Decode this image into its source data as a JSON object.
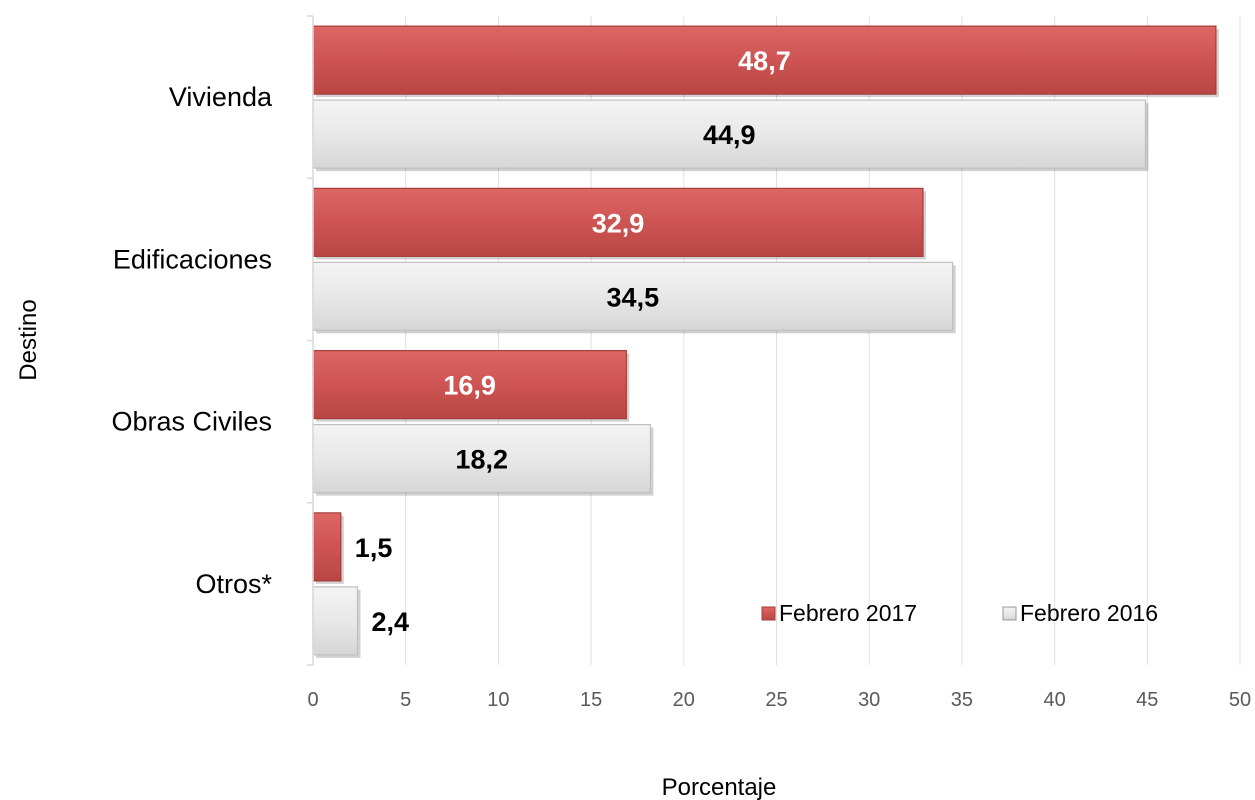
{
  "chart_data": {
    "type": "bar",
    "orientation": "horizontal",
    "title": "",
    "xlabel": "Porcentaje",
    "ylabel": "Destino",
    "categories": [
      "Vivienda",
      "Edificaciones",
      "Obras Civiles",
      "Otros*"
    ],
    "series": [
      {
        "name": "Febrero 2017",
        "values": [
          48.7,
          32.9,
          16.9,
          1.5
        ],
        "labels": [
          "48,7",
          "32,9",
          "16,9",
          "1,5"
        ],
        "color": "#cd5452",
        "label_color": "#ffffff"
      },
      {
        "name": "Febrero 2016",
        "values": [
          44.9,
          34.5,
          18.2,
          2.4
        ],
        "labels": [
          "44,9",
          "34,5",
          "18,2",
          "2,4"
        ],
        "color": "#e8e8e8",
        "label_color": "#000000"
      }
    ],
    "xlim": [
      0,
      50
    ],
    "xticks": [
      0,
      5,
      10,
      15,
      20,
      25,
      30,
      35,
      40,
      45,
      50
    ],
    "grid": true,
    "legend_position": "bottom-right"
  }
}
